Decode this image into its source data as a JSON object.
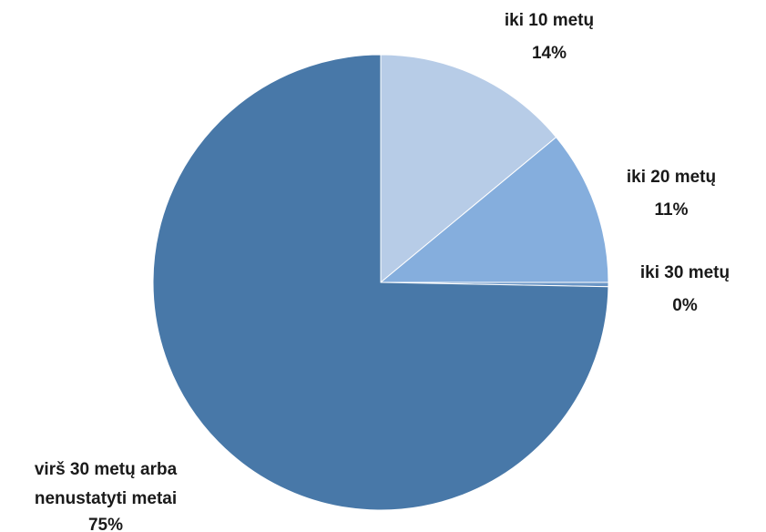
{
  "chart_data": {
    "type": "pie",
    "start_angle_deg": 0,
    "direction": "clockwise",
    "colors": {
      "background": "#ffffff",
      "slice_border": "#ffffff"
    },
    "slices": [
      {
        "name": "iki 10 metų",
        "value": 14,
        "label": "14%",
        "color": "#b7cce7"
      },
      {
        "name": "iki 20 metų",
        "value": 11,
        "label": "11%",
        "color": "#85aedd"
      },
      {
        "name": "iki 30 metų",
        "value": 0.3,
        "label": "0%",
        "color": "#6b96c6"
      },
      {
        "name": "virš 30 metų arba nenustatyti metai",
        "value": 74.7,
        "label": "75%",
        "color": "#4878a8"
      }
    ]
  }
}
